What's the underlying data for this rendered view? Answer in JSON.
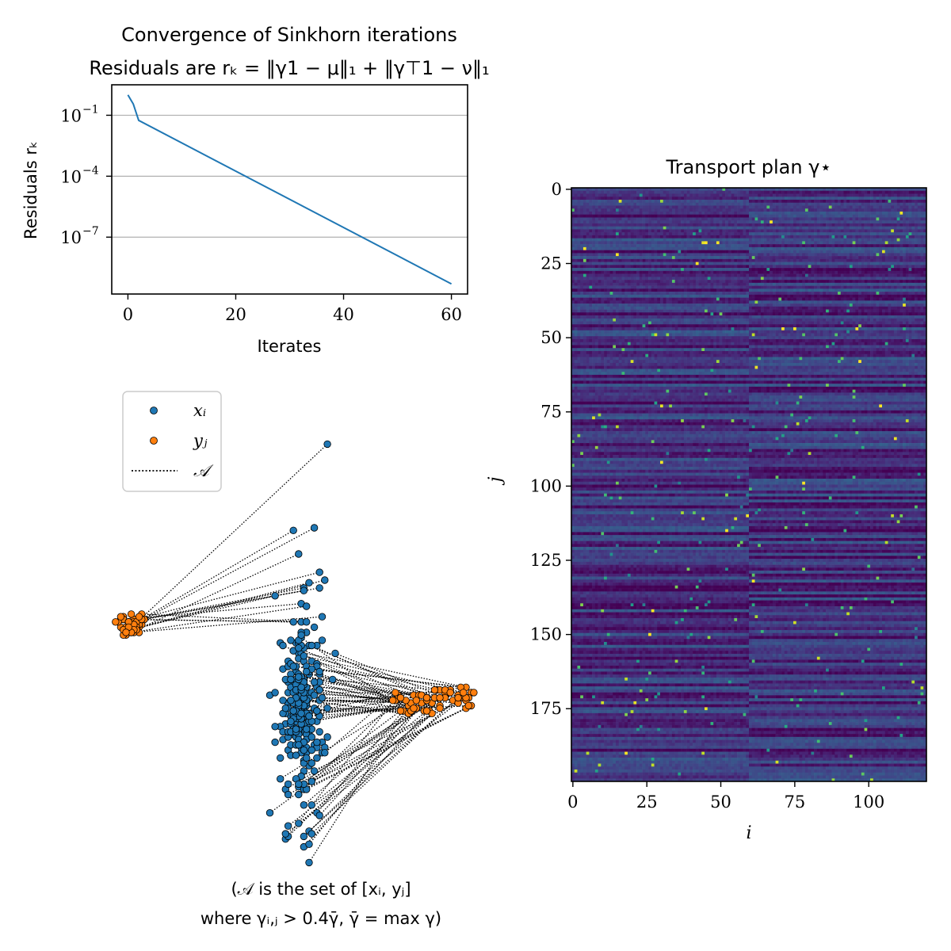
{
  "chart_data": [
    {
      "type": "line",
      "title": "Convergence of Sinkhorn iterations",
      "subtitle": "Residuals are rₖ = ‖γ1 − μ‖₁ + ‖γ⊤1 − ν‖₁",
      "xlabel": "Iterates",
      "ylabel": "Residuals rₖ",
      "yscale": "log",
      "grid": "horizontal",
      "xlim": [
        -3,
        63
      ],
      "ylim_log10": [
        -9.8,
        0.5
      ],
      "xticks": [
        "0",
        "20",
        "40",
        "60"
      ],
      "ytick_labels": [
        {
          "base": "10",
          "exp": "−1",
          "log10": -1
        },
        {
          "base": "10",
          "exp": "−4",
          "log10": -4
        },
        {
          "base": "10",
          "exp": "−7",
          "log10": -7
        }
      ],
      "series": [
        {
          "x": [
            0,
            1,
            2,
            60
          ],
          "log10_y": [
            0.0,
            -0.45,
            -1.25,
            -9.3
          ]
        }
      ]
    },
    {
      "type": "scatter",
      "legend": [
        "xᵢ",
        "yⱼ",
        "𝒜"
      ],
      "legend_position": "top-left",
      "caption_line1": "(𝒜 is the set of [xᵢ, yⱼ]",
      "caption_line2": "where γᵢ,ⱼ > 0.4γ̄, γ̄ = max γ)",
      "series": [
        {
          "name": "xᵢ",
          "color": "#1f77b4",
          "x": [
            -0.1,
            -0.23,
            -0.06,
            -0.14,
            -0.07,
            -0.15,
            -0.18,
            -0.12,
            -0.12,
            -0.18,
            -0.1,
            -0.15,
            -0.11,
            -0.19,
            -0.13,
            -0.17,
            -0.14,
            -0.03,
            0.0,
            -0.14,
            -0.21,
            -0.14,
            -0.12,
            -0.11,
            -0.1,
            -0.05,
            -0.15,
            -0.11,
            -0.06,
            -0.18,
            -0.1,
            -0.14,
            -0.15,
            -0.16,
            -0.08,
            -0.19,
            -0.2,
            -0.14,
            -0.16,
            -0.04,
            -0.13,
            -0.18,
            -0.12,
            -0.12,
            -0.11,
            -0.19,
            -0.16,
            -0.11,
            -0.16,
            -0.12,
            -0.13,
            -0.12,
            -0.12,
            -0.1,
            -0.1,
            -0.25,
            -0.23,
            -0.09,
            -0.21,
            -0.18,
            -0.15,
            -0.07,
            -0.16,
            -0.11,
            -0.2,
            -0.13,
            -0.12,
            -0.07,
            -0.07,
            -0.14,
            -0.21,
            -0.15,
            -0.19,
            -0.1,
            -0.14,
            -0.12,
            -0.05,
            -0.12,
            -0.13,
            -0.07,
            -0.13,
            -0.17,
            -0.14,
            -0.2,
            -0.06,
            -0.11,
            -0.21,
            -0.13,
            -0.1,
            -0.08,
            -0.06,
            -0.17,
            -0.12,
            -0.23,
            -0.14,
            -0.15,
            -0.12,
            -0.14,
            -0.12,
            -0.12,
            -0.18,
            -0.07,
            -0.12,
            -0.12,
            -0.14,
            -0.13,
            -0.16,
            -0.07,
            -0.17,
            -0.12,
            -0.2,
            -0.13,
            -0.11,
            -0.07,
            -0.16,
            -0.12,
            -0.17,
            -0.13,
            -0.14,
            -0.19,
            -0.11,
            -0.1,
            -0.11,
            -0.18,
            -0.11,
            -0.13,
            -0.13,
            -0.14,
            -0.08,
            -0.1,
            -0.14,
            -0.03,
            -0.13,
            -0.18,
            -0.07,
            -0.1,
            -0.07,
            -0.15,
            -0.18,
            -0.14,
            -0.06,
            -0.1,
            -0.18,
            -0.12,
            -0.15,
            -0.23,
            -0.1,
            -0.13,
            -0.17,
            -0.17,
            -0.16,
            -0.14,
            -0.11,
            -0.18,
            -0.07,
            -0.16,
            -0.13,
            -0.25,
            -0.13,
            -0.11,
            -0.1,
            -0.18,
            -0.16,
            -0.11,
            -0.07,
            -0.15,
            -0.12,
            -0.13,
            -0.14,
            -0.05,
            -0.1,
            -0.09,
            -0.16,
            -0.06,
            -0.05,
            -0.14,
            -0.12,
            -0.11,
            -0.17,
            -0.09,
            -0.12,
            -0.12,
            -0.14,
            -0.09,
            -0.04,
            -0.14,
            -0.12,
            -0.15,
            -0.15,
            -0.06,
            -0.15,
            -0.08,
            -0.09,
            -0.11,
            -0.14,
            -0.09,
            -0.18,
            -0.14,
            -0.09,
            -0.19,
            -0.1,
            -0.15,
            -0.01,
            -0.11,
            -0.16,
            -0.2,
            -0.13,
            -0.11,
            -0.07,
            -0.09,
            -0.11,
            -0.13,
            -0.06,
            -0.14,
            -0.16,
            -0.12,
            -0.17,
            -0.14,
            -0.15,
            -0.09,
            -0.14,
            -0.15,
            -0.03,
            -0.11,
            -0.16,
            -0.17,
            -0.15,
            -0.09,
            -0.09,
            -0.12,
            -0.17,
            -0.12,
            -0.16,
            -0.09,
            -0.15,
            -0.16,
            -0.06,
            -0.08,
            -0.17,
            -0.12,
            -0.16,
            -0.2,
            -0.06,
            -0.13,
            -0.15,
            -0.05,
            -0.1,
            -0.04,
            -0.14,
            -0.14,
            -0.17,
            -0.08,
            -0.12,
            -0.14,
            -0.15,
            -0.12,
            -0.11,
            -0.08,
            -0.15,
            -0.13,
            -0.06,
            -0.11,
            -0.12,
            -0.19,
            -0.12,
            -0.13,
            -0.12,
            -0.14,
            -0.14,
            -0.13,
            -0.14,
            -0.17
          ],
          "y": [
            -0.88,
            0.14,
            0.23,
            0.3,
            -0.3,
            -0.15,
            -0.45,
            -0.82,
            -0.24,
            -0.74,
            -0.25,
            -0.04,
            -0.46,
            -0.79,
            0.04,
            -0.26,
            -0.2,
            0.72,
            -0.08,
            -0.59,
            -0.04,
            -0.08,
            -0.28,
            -0.32,
            -0.14,
            -0.03,
            -0.23,
            -0.28,
            -0.16,
            -0.23,
            -0.16,
            -0.2,
            -0.25,
            -0.36,
            -0.43,
            -0.6,
            -0.05,
            -0.04,
            -0.26,
            0.2,
            -0.08,
            -0.78,
            0.17,
            -0.3,
            0.0,
            -0.35,
            0.39,
            -0.23,
            -0.2,
            -0.6,
            0.0,
            -0.53,
            -0.2,
            -0.81,
            -0.05,
            -0.24,
            -0.42,
            -0.11,
            -0.48,
            -0.27,
            -0.34,
            -0.34,
            -0.07,
            -0.6,
            -0.41,
            -0.28,
            -0.18,
            -0.21,
            -0.05,
            -0.16,
            -0.56,
            -0.39,
            -0.77,
            -0.35,
            -0.33,
            -0.26,
            -0.42,
            -0.38,
            -0.46,
            -0.48,
            -0.2,
            -0.26,
            -0.21,
            -0.14,
            0.17,
            -0.39,
            -0.36,
            -0.02,
            -0.32,
            -0.29,
            -0.19,
            -0.43,
            -0.78,
            -0.36,
            -0.1,
            -0.32,
            0.16,
            -0.38,
            -0.21,
            -0.3,
            -0.62,
            -0.3,
            -0.35,
            -0.11,
            -0.42,
            -0.55,
            -0.22,
            -0.44,
            -0.35,
            -0.23,
            -0.38,
            -0.17,
            -0.48,
            -0.42,
            -0.39,
            -0.58,
            -0.32,
            -0.44,
            -0.19,
            -0.31,
            -0.21,
            0.19,
            -0.13,
            -0.4,
            0.04,
            -0.36,
            -0.3,
            -0.18,
            0.4,
            -0.51,
            -0.22,
            -0.29,
            0.11,
            -0.19,
            -0.69,
            -0.34,
            -0.12,
            -0.56,
            -0.11,
            -0.3,
            -0.32,
            -0.32,
            -0.38,
            -0.49,
            -0.29,
            -0.23,
            -0.76,
            -0.26,
            -0.16,
            -0.21,
            -0.37,
            -0.24,
            -0.31,
            -0.58,
            -0.13,
            0.04,
            -0.24,
            -0.69,
            -0.24,
            -0.44,
            -0.39,
            -0.29,
            -0.23,
            -0.27,
            -0.3,
            -0.13,
            -0.06,
            -0.05,
            -0.42,
            -0.46,
            -0.31,
            -0.77,
            -0.27,
            -0.38,
            0.06,
            -0.58,
            -0.28,
            -0.39,
            -0.03,
            -0.45,
            -0.5,
            -0.31,
            -0.37,
            -0.57,
            -0.44,
            -0.73,
            -0.66,
            -0.4,
            -0.18,
            -0.22,
            -0.2,
            -0.19,
            -0.34,
            -0.48,
            -0.39,
            -0.23,
            -0.13,
            -0.03,
            -0.5,
            -0.18,
            -0.15,
            -0.43,
            -0.18,
            -0.41,
            -0.07,
            -0.31,
            -0.35,
            -0.26,
            -0.3,
            -0.4,
            0.1,
            -0.33,
            -0.22,
            -0.32,
            -0.32,
            -0.28,
            -0.12,
            -0.28,
            -0.22,
            -0.66,
            -0.27,
            -0.3,
            -0.4,
            -0.31,
            -0.3,
            -0.38,
            -0.37,
            -0.14,
            -0.05,
            -0.25,
            -0.47,
            -0.09,
            -0.13,
            -0.37,
            -0.25,
            -0.33,
            -0.26,
            -0.53,
            -0.18,
            -0.19,
            -0.3,
            -0.26,
            -0.7,
            -0.31,
            -0.38,
            -0.25,
            -0.32,
            -0.46,
            -0.62,
            -0.06,
            -0.34,
            0.02,
            -0.23,
            -0.41,
            -0.37,
            -0.2,
            -0.37,
            -0.24,
            -0.47,
            -0.22,
            -0.15,
            -0.15,
            -0.45,
            -0.29,
            -0.42,
            -0.01,
            -0.19,
            -0.43,
            -0.18,
            -0.21,
            -0.17,
            -0.26
          ]
        },
        {
          "name": "yⱼ",
          "color": "#ff7f0e",
          "x": [
            -0.82,
            -0.79,
            -0.76,
            -0.8,
            -0.74,
            -0.79,
            -0.79,
            -0.81,
            -0.75,
            -0.8,
            -0.78,
            -0.77,
            -0.81,
            -0.77,
            -0.82,
            -0.74,
            -0.8,
            -0.81,
            -0.76,
            -0.75,
            -0.77,
            -0.8,
            -0.76,
            -0.81,
            -0.79,
            -0.75,
            -0.77,
            -0.75,
            -0.83,
            -0.77,
            -0.78,
            -0.79,
            -0.76,
            -0.76,
            -0.84,
            -0.77,
            -0.73,
            -0.77,
            -0.77,
            -0.78,
            -0.78,
            -0.79,
            -0.79,
            -0.76,
            -0.79,
            -0.77,
            -0.74,
            -0.77,
            -0.76,
            -0.76,
            -0.77,
            -0.77,
            -0.79,
            -0.78,
            -0.78,
            -0.81,
            -0.75,
            -0.79,
            -0.8,
            -0.82,
            0.28,
            0.43,
            0.35,
            0.52,
            0.39,
            0.4,
            0.31,
            0.42,
            0.23,
            0.4,
            0.3,
            0.36,
            0.52,
            0.24,
            0.26,
            0.37,
            0.4,
            0.51,
            0.42,
            0.29,
            0.49,
            0.22,
            0.25,
            0.5,
            0.5,
            0.32,
            0.48,
            0.28,
            0.33,
            0.34,
            0.45,
            0.25,
            0.37,
            0.23,
            0.47,
            0.44,
            0.35,
            0.29,
            0.5,
            0.35,
            0.53,
            0.35,
            0.47,
            0.47,
            0.27,
            0.48,
            0.31,
            0.47,
            0.33,
            0.5,
            0.38,
            0.49,
            0.3,
            0.35,
            0.38,
            0.4,
            0.42,
            0.44,
            0.51,
            0.25
          ],
          "y": [
            0.02,
            0.01,
            0.05,
            -0.01,
            0.07,
            0.02,
            0.03,
            0.06,
            0.04,
            0.01,
            0.02,
            0.01,
            0.05,
            0.01,
            0.05,
            0.03,
            0.01,
            -0.01,
            0.01,
            0.02,
            0.03,
            0.02,
            0.03,
            0.05,
            0.04,
            0.03,
            0.02,
            0.0,
            0.04,
            0.05,
            0.0,
            0.04,
            0.02,
            0.02,
            0.04,
            0.05,
            0.05,
            -0.0,
            0.04,
            0.01,
            0.03,
            0.02,
            0.04,
            0.04,
            0.04,
            0.03,
            0.05,
            0.02,
            0.02,
            0.01,
            0.03,
            0.01,
            0.04,
            0.07,
            0.0,
            0.01,
            0.06,
            0.02,
            0.0,
            0.06,
            -0.28,
            -0.23,
            -0.25,
            -0.28,
            -0.22,
            -0.28,
            -0.29,
            -0.23,
            -0.26,
            -0.29,
            -0.24,
            -0.3,
            -0.23,
            -0.24,
            -0.3,
            -0.27,
            -0.22,
            -0.25,
            -0.25,
            -0.27,
            -0.25,
            -0.26,
            -0.3,
            -0.26,
            -0.21,
            -0.24,
            -0.24,
            -0.31,
            -0.27,
            -0.3,
            -0.26,
            -0.25,
            -0.31,
            -0.23,
            -0.25,
            -0.22,
            -0.3,
            -0.3,
            -0.25,
            -0.3,
            -0.23,
            -0.26,
            -0.27,
            -0.24,
            -0.26,
            -0.21,
            -0.26,
            -0.25,
            -0.24,
            -0.29,
            -0.22,
            -0.23,
            -0.29,
            -0.25,
            -0.25,
            -0.25,
            -0.22,
            -0.23,
            -0.28,
            -0.25
          ]
        }
      ]
    },
    {
      "type": "heatmap",
      "title": "Transport plan γ⋆",
      "xlabel": "i",
      "ylabel": "j",
      "colormap": "viridis",
      "columns": 120,
      "rows": 200,
      "xticks": [
        "0",
        "25",
        "50",
        "75",
        "100"
      ],
      "yticks": [
        "0",
        "25",
        "50",
        "75",
        "100",
        "125",
        "150",
        "175"
      ],
      "column_block_boundary": 60
    }
  ]
}
